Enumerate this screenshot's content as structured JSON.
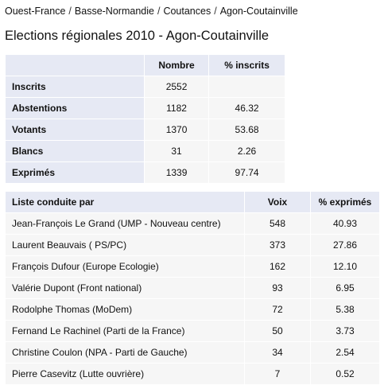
{
  "breadcrumb": {
    "items": [
      "Ouest-France",
      "Basse-Normandie",
      "Coutances",
      "Agon-Coutainville"
    ],
    "separator": "/"
  },
  "title": "Elections régionales 2010 - Agon-Coutainville",
  "stats_table": {
    "headers": [
      "",
      "Nombre",
      "% inscrits"
    ],
    "rows": [
      {
        "label": "Inscrits",
        "nombre": "2552",
        "pct": ""
      },
      {
        "label": "Abstentions",
        "nombre": "1182",
        "pct": "46.32"
      },
      {
        "label": "Votants",
        "nombre": "1370",
        "pct": "53.68"
      },
      {
        "label": "Blancs",
        "nombre": "31",
        "pct": "2.26"
      },
      {
        "label": "Exprimés",
        "nombre": "1339",
        "pct": "97.74"
      }
    ]
  },
  "results_table": {
    "headers": [
      "Liste conduite par",
      "Voix",
      "% exprimés"
    ],
    "rows": [
      {
        "liste": "Jean-François Le Grand (UMP - Nouveau centre)",
        "voix": "548",
        "pct": "40.93"
      },
      {
        "liste": "Laurent Beauvais ( PS/PC)",
        "voix": "373",
        "pct": "27.86"
      },
      {
        "liste": "François Dufour (Europe Ecologie)",
        "voix": "162",
        "pct": "12.10"
      },
      {
        "liste": "Valérie Dupont (Front national)",
        "voix": "93",
        "pct": "6.95"
      },
      {
        "liste": "Rodolphe Thomas (MoDem)",
        "voix": "72",
        "pct": "5.38"
      },
      {
        "liste": "Fernand Le Rachinel (Parti de la France)",
        "voix": "50",
        "pct": "3.73"
      },
      {
        "liste": "Christine Coulon (NPA - Parti de Gauche)",
        "voix": "34",
        "pct": "2.54"
      },
      {
        "liste": "Pierre Casevitz (Lutte ouvrière)",
        "voix": "7",
        "pct": "0.52"
      }
    ]
  },
  "colors": {
    "header_bg": "#e6e9f4",
    "cell_bg": "#f6f6f6",
    "text": "#111111"
  }
}
